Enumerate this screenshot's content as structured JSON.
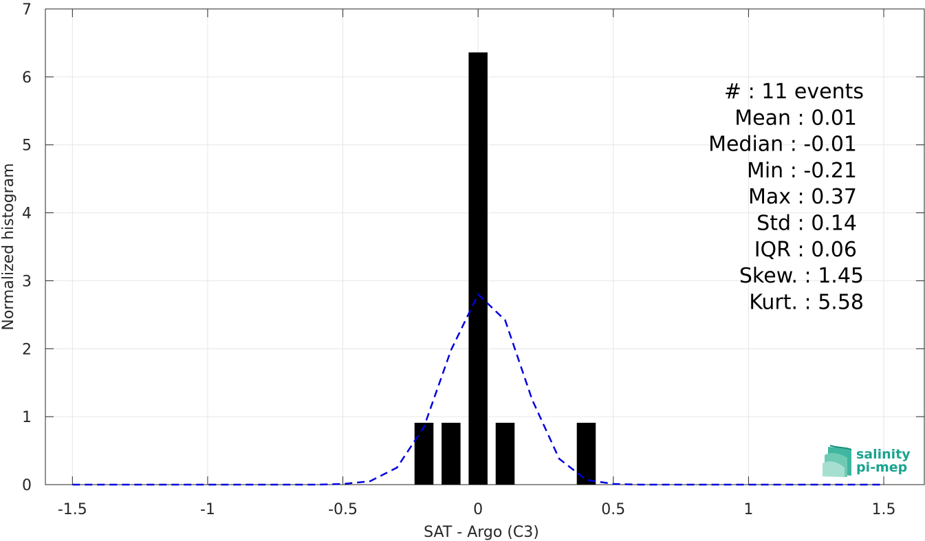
{
  "chart_data": {
    "type": "bar",
    "xlabel": "SAT - Argo (C3)",
    "ylabel": "Normalized histogram",
    "xlim": [
      -1.6,
      1.65
    ],
    "ylim": [
      0,
      7
    ],
    "xticks": [
      -1.5,
      -1,
      -0.5,
      0,
      0.5,
      1,
      1.5
    ],
    "xtick_labels": [
      "-1.5",
      "-1",
      "-0.5",
      "0",
      "0.5",
      "1",
      "1.5"
    ],
    "yticks": [
      0,
      1,
      2,
      3,
      4,
      5,
      6,
      7
    ],
    "ytick_labels": [
      "0",
      "1",
      "2",
      "3",
      "4",
      "5",
      "6",
      "7"
    ],
    "grid": true,
    "bar_color": "#000000",
    "bar_width": 0.07,
    "bars": [
      {
        "x": -0.2,
        "value": 0.91
      },
      {
        "x": -0.1,
        "value": 0.91
      },
      {
        "x": 0.0,
        "value": 6.36
      },
      {
        "x": 0.1,
        "value": 0.91
      },
      {
        "x": 0.4,
        "value": 0.91
      }
    ],
    "fit_curve": {
      "style": "dashed",
      "color": "#0000dd",
      "x": [
        -1.5,
        -1.4,
        -1.3,
        -1.2,
        -1.1,
        -1.0,
        -0.9,
        -0.8,
        -0.7,
        -0.6,
        -0.5,
        -0.4,
        -0.3,
        -0.2,
        -0.1,
        0.0,
        0.1,
        0.2,
        0.3,
        0.4,
        0.5,
        0.6,
        0.7,
        0.8,
        0.9,
        1.0,
        1.1,
        1.2,
        1.3,
        1.4,
        1.5
      ],
      "y": [
        0,
        0,
        0,
        0,
        0,
        0,
        0,
        0,
        0,
        0,
        0.01,
        0.05,
        0.25,
        0.85,
        1.98,
        2.8,
        2.42,
        1.25,
        0.38,
        0.07,
        0.01,
        0,
        0,
        0,
        0,
        0,
        0,
        0,
        0,
        0,
        0
      ]
    },
    "stats": [
      "#  : 11 events",
      "Mean : 0.01",
      "Median : -0.01",
      "Min : -0.21",
      "Max : 0.37",
      "Std : 0.14",
      "IQR : 0.06",
      "Skew. : 1.45",
      "Kurt. : 5.58"
    ],
    "logo": {
      "line1": "salinity",
      "line2": "pi-mep",
      "color": "#1aa38f",
      "icon": "waves-logo-icon"
    }
  }
}
